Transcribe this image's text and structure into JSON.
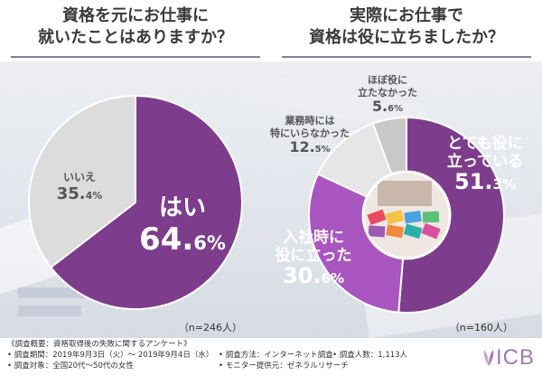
{
  "chart_data": [
    {
      "type": "pie",
      "title": [
        "資格を元にお仕事に",
        "就いたことはありますか？"
      ],
      "categories": [
        "はい",
        "いいえ"
      ],
      "values": [
        64.6,
        35.4
      ],
      "colors": [
        "#7e3d8c",
        "#dcdcdc"
      ],
      "n": "（n=246人）"
    },
    {
      "type": "pie",
      "title": [
        "実際にお仕事で",
        "資格は役に立ちましたか？"
      ],
      "categories": [
        [
          "とても役に",
          "立っている"
        ],
        [
          "入社時に",
          "役に立った"
        ],
        [
          "業務時には",
          "特にいらなかった"
        ],
        [
          "ほぼ役に",
          "立たなかった"
        ]
      ],
      "values": [
        51.3,
        30.6,
        12.5,
        5.6
      ],
      "colors": [
        "#7e3d8c",
        "#a956c0",
        "#e6e6e6",
        "#c8c8c8"
      ],
      "n": "（n=160人）"
    }
  ],
  "footer": {
    "heading": "《調査概要：資格取得後の失敗に関するアンケート》",
    "period": "• 調査期間：2019年9月3日（火）～ 2019年9月4日（水）",
    "target": "• 調査対象：全国20代～50代の女性",
    "method": "• 調査方法：インターネット調査",
    "count": "• 調査人数：1,113人",
    "provider": "• モニター提供元：ゼネラルリサーチ"
  },
  "logo": {
    "text": "ICB"
  }
}
